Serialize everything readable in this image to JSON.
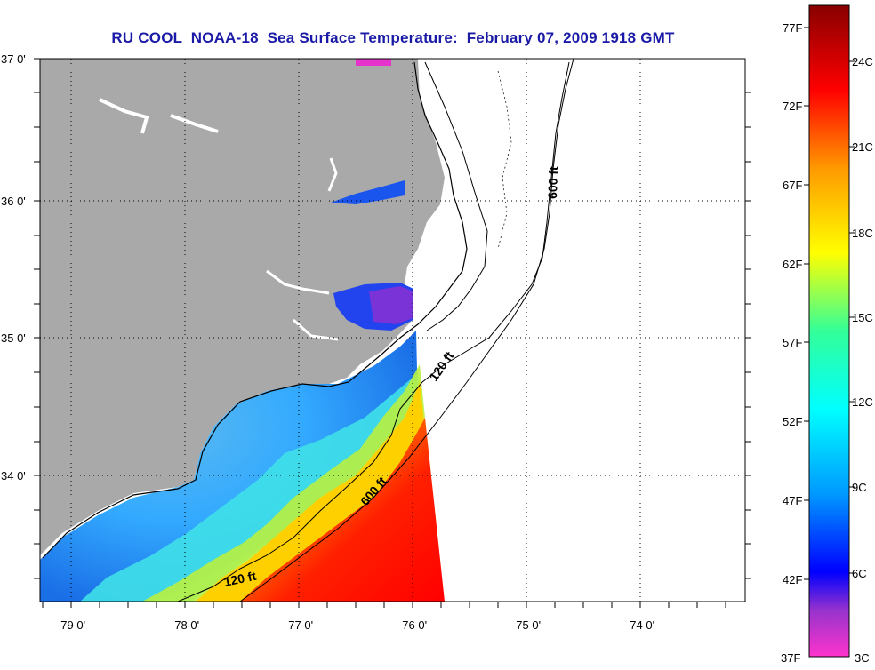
{
  "title": "RU COOL  NOAA-18  Sea Surface Temperature:  February 07, 2009 1918 GMT",
  "map": {
    "lon_labels": [
      "-79 0'",
      "-78 0'",
      "-77 0'",
      "-76 0'",
      "-75 0'",
      "-74 0'"
    ],
    "lat_labels": [
      "37 0'",
      "36 0'",
      "35 0'",
      "34 0'"
    ],
    "contours": {
      "shelf_120_label_north": "120 ft",
      "shelf_120_label_south": "120 ft",
      "shelf_600_label_north": "600 ft",
      "shelf_600_label_south": "600 ft"
    },
    "colors": {
      "land": "#a9a9a9",
      "contour": "#000000",
      "grid": "#000000"
    }
  },
  "colorbar": {
    "fahrenheit_labels": [
      "77F",
      "72F",
      "67F",
      "62F",
      "57F",
      "52F",
      "47F",
      "42F",
      "37F"
    ],
    "celsius_labels": [
      "24C",
      "21C",
      "18C",
      "15C",
      "12C",
      "9C",
      "6C",
      "3C"
    ],
    "range_celsius": [
      3,
      25
    ],
    "range_fahrenheit": [
      37,
      77
    ]
  }
}
